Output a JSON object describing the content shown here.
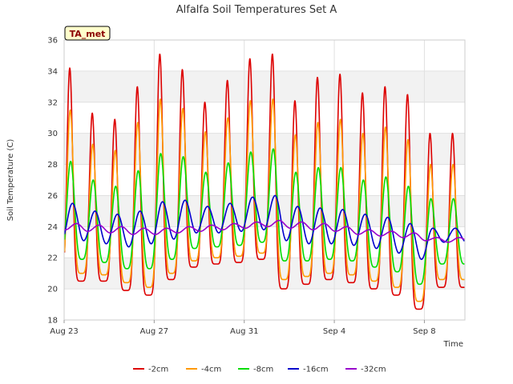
{
  "chart_data": {
    "type": "line",
    "title": "Alfalfa Soil Temperatures Set A",
    "xlabel": "Time",
    "ylabel": "Soil Temperature (C)",
    "badge": "TA_met",
    "xlim": [
      0,
      17.8
    ],
    "ylim": [
      18,
      36
    ],
    "x_ticks": [
      {
        "label": "Aug 23",
        "day": 0
      },
      {
        "label": "Aug 27",
        "day": 4
      },
      {
        "label": "Aug 31",
        "day": 8
      },
      {
        "label": "Sep 4",
        "day": 12
      },
      {
        "label": "Sep 8",
        "day": 16
      }
    ],
    "y_ticks": [
      18,
      20,
      22,
      24,
      26,
      28,
      30,
      32,
      34,
      36
    ],
    "grid": true,
    "legend_position": "bottom",
    "series": [
      {
        "name": "-2cm",
        "color": "#dd0000",
        "min": [
          20.1,
          20.5,
          20.5,
          19.9,
          19.6,
          20.6,
          21.4,
          21.6,
          21.7,
          21.9,
          20.0,
          20.3,
          20.6,
          20.4,
          20.0,
          19.6,
          18.7,
          20.1
        ],
        "max": [
          34.2,
          31.3,
          30.9,
          33.0,
          35.1,
          34.1,
          32.0,
          33.4,
          34.8,
          35.1,
          32.1,
          33.6,
          33.8,
          32.6,
          33.0,
          32.5,
          30.0
        ]
      },
      {
        "name": "-4cm",
        "color": "#ff9900",
        "min": [
          20.6,
          21.0,
          20.9,
          20.4,
          20.1,
          21.0,
          21.8,
          22.0,
          22.1,
          22.3,
          20.6,
          20.8,
          21.0,
          20.9,
          20.5,
          20.1,
          19.2,
          20.6
        ],
        "max": [
          31.5,
          29.3,
          28.9,
          30.7,
          32.2,
          31.6,
          30.1,
          31.0,
          32.1,
          32.2,
          29.9,
          30.7,
          30.9,
          30.0,
          30.4,
          29.6,
          28.0
        ]
      },
      {
        "name": "-8cm",
        "color": "#00dd00",
        "min": [
          21.7,
          21.9,
          21.7,
          21.3,
          21.3,
          21.9,
          22.6,
          22.7,
          22.8,
          23.0,
          21.8,
          21.8,
          21.9,
          21.8,
          21.4,
          21.1,
          20.3,
          21.6
        ],
        "max": [
          28.2,
          27.0,
          26.6,
          27.6,
          28.7,
          28.5,
          27.5,
          28.1,
          28.8,
          29.0,
          27.5,
          27.8,
          27.8,
          27.0,
          27.2,
          26.6,
          25.8
        ]
      },
      {
        "name": "-16cm",
        "color": "#0000cc",
        "min": [
          23.0,
          23.1,
          22.9,
          22.7,
          22.9,
          23.2,
          23.6,
          23.6,
          23.7,
          23.8,
          23.1,
          22.9,
          22.9,
          22.8,
          22.6,
          22.3,
          21.9,
          23.0
        ],
        "max": [
          25.5,
          25.0,
          24.8,
          25.0,
          25.6,
          25.7,
          25.3,
          25.5,
          25.9,
          26.0,
          25.3,
          25.2,
          25.1,
          24.8,
          24.6,
          24.2,
          23.9
        ]
      },
      {
        "name": "-32cm",
        "color": "#9900cc",
        "min": [
          23.8,
          23.7,
          23.6,
          23.5,
          23.5,
          23.6,
          23.7,
          23.8,
          23.9,
          24.0,
          23.9,
          23.8,
          23.7,
          23.5,
          23.4,
          23.3,
          23.1,
          23.0
        ],
        "max": [
          24.2,
          24.1,
          24.0,
          23.9,
          23.9,
          24.0,
          24.1,
          24.2,
          24.3,
          24.4,
          24.3,
          24.2,
          24.0,
          23.8,
          23.7,
          23.6,
          23.3
        ]
      }
    ]
  }
}
